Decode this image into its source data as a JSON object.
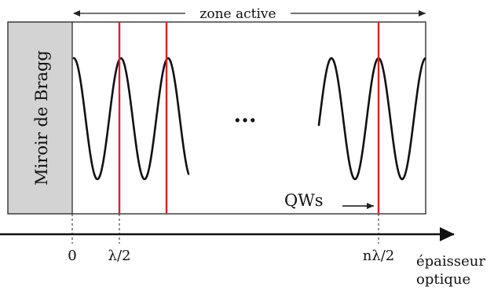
{
  "diagram": {
    "zone_label": "zone active",
    "mirror_label": "Miroir de Bragg",
    "ellipsis": "...",
    "qw_label": "QWs",
    "axis_label_line1": "épaisseur",
    "axis_label_line2": "optique",
    "ticks": [
      "0",
      "λ/2",
      "nλ/2"
    ],
    "colors": {
      "mirror_fill": "#d3d3d3",
      "quantum_well": "#d6242a",
      "wave": "#111111",
      "outline": "#222222"
    }
  }
}
